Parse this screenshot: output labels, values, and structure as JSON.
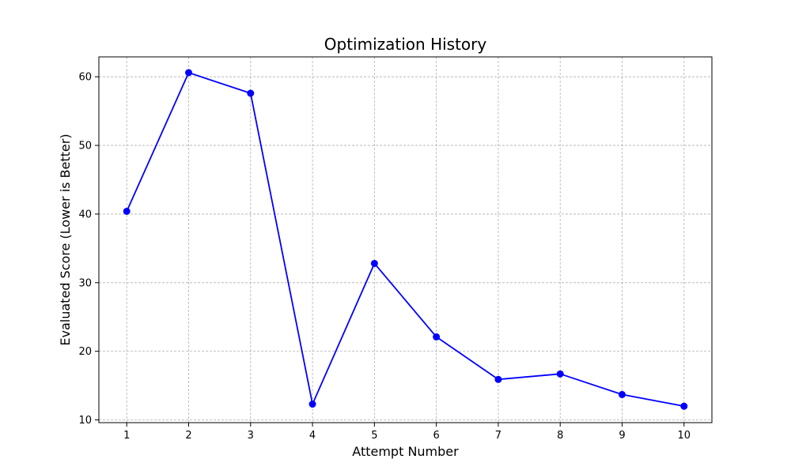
{
  "chart_data": {
    "type": "line",
    "title": "Optimization History",
    "xlabel": "Attempt Number",
    "ylabel": "Evaluated Score (Lower is Better)",
    "x": [
      1,
      2,
      3,
      4,
      5,
      6,
      7,
      8,
      9,
      10
    ],
    "y": [
      40.4,
      60.6,
      57.6,
      12.3,
      32.8,
      22.1,
      15.9,
      16.7,
      13.7,
      12.0
    ],
    "xticks": [
      1,
      2,
      3,
      4,
      5,
      6,
      7,
      8,
      9,
      10
    ],
    "yticks": [
      10,
      20,
      30,
      40,
      50,
      60
    ],
    "xlim": [
      0.55,
      10.45
    ],
    "ylim": [
      9.6,
      62.9
    ],
    "grid": true,
    "series_color": "#0000ff",
    "marker": "circle"
  }
}
